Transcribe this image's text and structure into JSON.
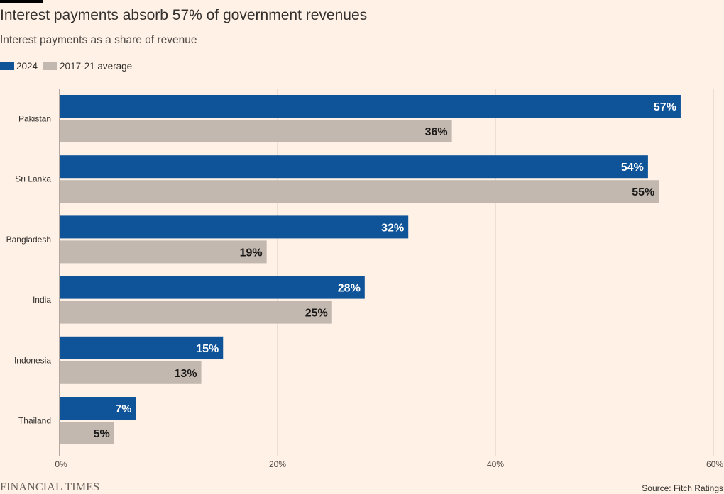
{
  "title": "Interest payments absorb 57% of government revenues",
  "subtitle": "Interest payments as a share of revenue",
  "source": "Source: Fitch Ratings",
  "brand": "FINANCIAL TIMES",
  "colors": {
    "background": "#fff1e5",
    "series_2024": "#0f5499",
    "series_2017_21": "#c2b8af",
    "gridline": "#d8ccc1",
    "axis": "#66605c"
  },
  "legend": [
    {
      "label": "2024",
      "color": "#0f5499"
    },
    {
      "label": "2017-21 average",
      "color": "#c2b8af"
    }
  ],
  "chart_data": {
    "type": "bar",
    "orientation": "horizontal",
    "categories": [
      "Pakistan",
      "Sri Lanka",
      "Bangladesh",
      "India",
      "Indonesia",
      "Thailand"
    ],
    "series": [
      {
        "name": "2024",
        "values": [
          57,
          54,
          32,
          28,
          15,
          7
        ],
        "labels": [
          "57%",
          "54%",
          "32%",
          "28%",
          "15%",
          "7%"
        ]
      },
      {
        "name": "2017-21 average",
        "values": [
          36,
          55,
          19,
          25,
          13,
          5
        ],
        "labels": [
          "36%",
          "55%",
          "19%",
          "25%",
          "13%",
          "5%"
        ]
      }
    ],
    "xlim": [
      0,
      60
    ],
    "xticks": [
      0,
      20,
      40,
      60
    ],
    "xtick_labels": [
      "0%",
      "20%",
      "40%",
      "60%"
    ],
    "grid": true,
    "legend_position": "top-left"
  }
}
